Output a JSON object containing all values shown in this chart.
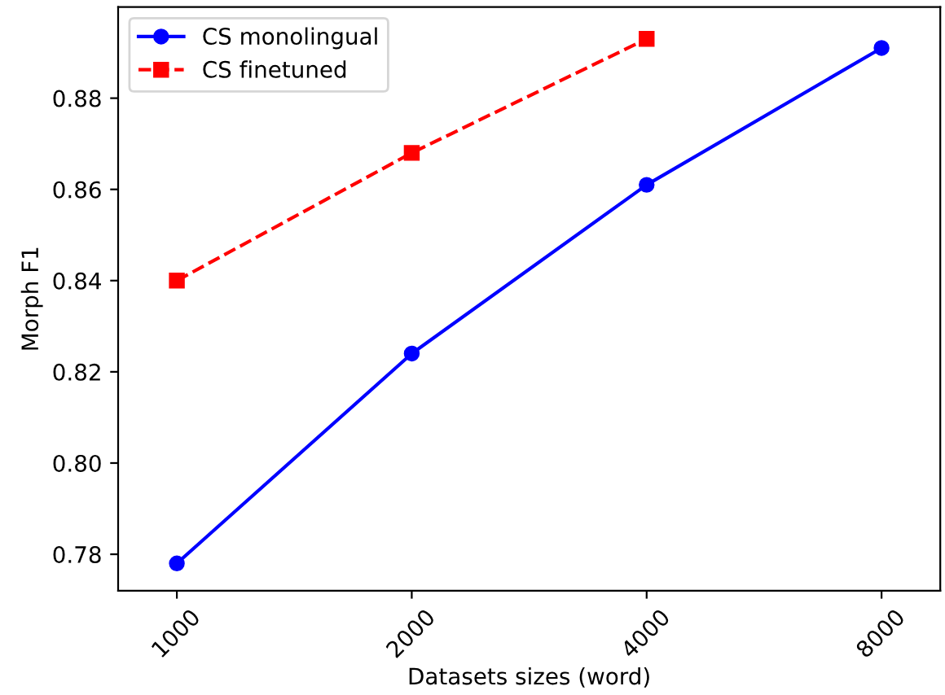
{
  "chart_data": {
    "type": "line",
    "xlabel": "Datasets sizes (word)",
    "ylabel": "Morph F1",
    "categories": [
      "1000",
      "2000",
      "4000",
      "8000"
    ],
    "series": [
      {
        "name": "CS monolingual",
        "color": "#0000ff",
        "values": [
          0.778,
          0.824,
          0.861,
          0.891
        ],
        "marker": "circle",
        "line_style": "solid"
      },
      {
        "name": "CS finetuned",
        "color": "#ff0000",
        "values": [
          0.84,
          0.868,
          0.893,
          null
        ],
        "marker": "square",
        "line_style": "dashed"
      }
    ],
    "ylim": [
      0.772,
      0.9
    ],
    "yticks": [
      0.78,
      {
        "value": 0.8,
        "label": "0.80"
      },
      0.82,
      0.84,
      0.86,
      0.88
    ],
    "legend": "top left",
    "grid": false
  }
}
